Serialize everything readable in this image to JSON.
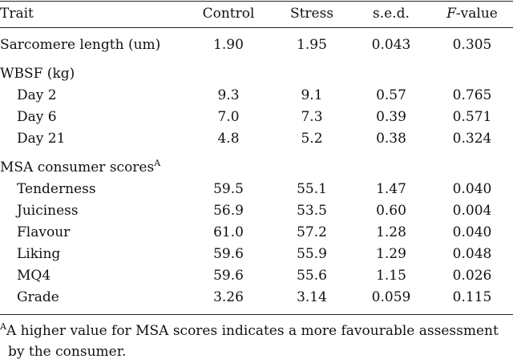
{
  "table": {
    "headers": {
      "trait": "Trait",
      "control": "Control",
      "stress": "Stress",
      "sed": "s.e.d.",
      "fvalue_italic": "F",
      "fvalue_rest": "-value"
    },
    "sarcomere": {
      "label": "Sarcomere length (um)",
      "control": "1.90",
      "stress": "1.95",
      "sed": "0.043",
      "fvalue": "0.305"
    },
    "wbsf_label": "WBSF (kg)",
    "wbsf_rows": [
      {
        "label": "Day 2",
        "control": "9.3",
        "stress": "9.1",
        "sed": "0.57",
        "fvalue": "0.765"
      },
      {
        "label": "Day 6",
        "control": "7.0",
        "stress": "7.3",
        "sed": "0.39",
        "fvalue": "0.571"
      },
      {
        "label": "Day 21",
        "control": "4.8",
        "stress": "5.2",
        "sed": "0.38",
        "fvalue": "0.324"
      }
    ],
    "msa_label": "MSA consumer scores",
    "msa_sup": "A",
    "msa_rows": [
      {
        "label": "Tenderness",
        "control": "59.5",
        "stress": "55.1",
        "sed": "1.47",
        "fvalue": "0.040"
      },
      {
        "label": "Juiciness",
        "control": "56.9",
        "stress": "53.5",
        "sed": "0.60",
        "fvalue": "0.004"
      },
      {
        "label": "Flavour",
        "control": "61.0",
        "stress": "57.2",
        "sed": "1.28",
        "fvalue": "0.040"
      },
      {
        "label": "Liking",
        "control": "59.6",
        "stress": "55.9",
        "sed": "1.29",
        "fvalue": "0.048"
      },
      {
        "label": "MQ4",
        "control": "59.6",
        "stress": "55.6",
        "sed": "1.15",
        "fvalue": "0.026"
      },
      {
        "label": "Grade",
        "control": "3.26",
        "stress": "3.14",
        "sed": "0.059",
        "fvalue": "0.115"
      }
    ]
  },
  "footnote": {
    "sup": "A",
    "line1": "A higher value for MSA scores indicates a more favourable assessment",
    "line2": "by the consumer."
  }
}
